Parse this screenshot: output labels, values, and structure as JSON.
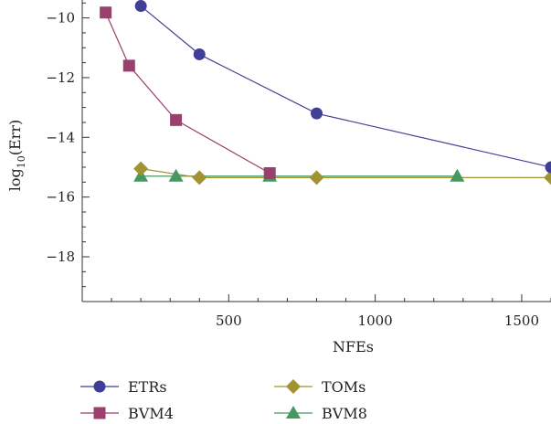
{
  "chart_data": {
    "type": "line",
    "xlabel": "NFEs",
    "ylabel": "log10(Err)",
    "ylabel_parts": {
      "base": "log",
      "subscript": "10",
      "rest": "(Err)"
    },
    "xlim": [
      0,
      1600
    ],
    "ylim": [
      -19.5,
      -9.4
    ],
    "xticks": [
      500,
      1000,
      1500
    ],
    "yticks": [
      -10,
      -12,
      -14,
      -16,
      -18
    ],
    "xtick_labels": [
      "500",
      "1000",
      "1500"
    ],
    "ytick_labels": [
      "−10",
      "−12",
      "−14",
      "−16",
      "−18"
    ],
    "grid": false,
    "legend_position": "bottom",
    "series": [
      {
        "name": "ETRs",
        "color": "#3f3f97",
        "marker": "circle",
        "x": [
          200,
          400,
          800,
          1600
        ],
        "y": [
          -9.6,
          -11.22,
          -13.2,
          -15.0
        ]
      },
      {
        "name": "BVM4",
        "color": "#9a3f6e",
        "marker": "square",
        "x": [
          80,
          160,
          320,
          640
        ],
        "y": [
          -9.82,
          -11.6,
          -13.42,
          -15.2
        ]
      },
      {
        "name": "TOMs",
        "color": "#a19232",
        "marker": "diamond",
        "x": [
          200,
          400,
          800,
          1600
        ],
        "y": [
          -15.05,
          -15.35,
          -15.35,
          -15.35
        ]
      },
      {
        "name": "BVM8",
        "color": "#479761",
        "marker": "triangle",
        "x": [
          200,
          320,
          640,
          1280
        ],
        "y": [
          -15.3,
          -15.3,
          -15.3,
          -15.3
        ]
      }
    ]
  }
}
